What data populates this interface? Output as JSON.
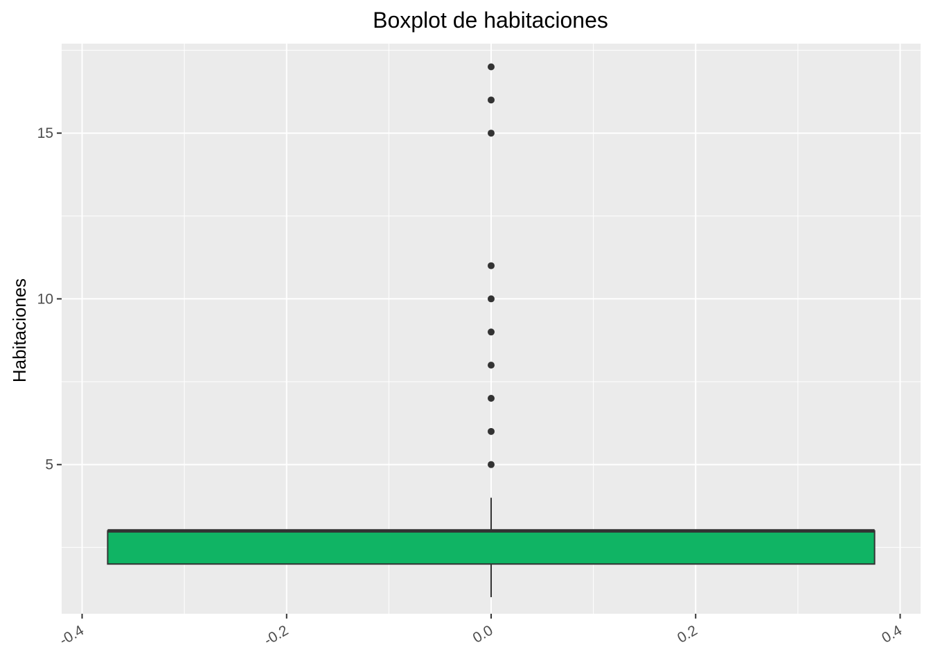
{
  "chart_data": {
    "type": "boxplot",
    "title": "Boxplot de habitaciones",
    "xlabel": "",
    "ylabel": "Habitaciones",
    "xlim": [
      -0.42,
      0.42
    ],
    "ylim": [
      0.5,
      17.7
    ],
    "x_ticks": [
      -0.4,
      -0.2,
      0.0,
      0.2,
      0.4
    ],
    "x_tick_labels": [
      "-0.4",
      "-0.2",
      "0.0",
      "0.2",
      "0.4"
    ],
    "y_ticks": [
      5,
      10,
      15
    ],
    "y_tick_labels": [
      "5",
      "10",
      "15"
    ],
    "grid": true,
    "box": {
      "x_left": -0.375,
      "x_right": 0.375,
      "q1": 2,
      "median": 3,
      "q3": 3,
      "whisker_low": 1,
      "whisker_high": 4,
      "fill": "#10b464"
    },
    "outliers": [
      5,
      6,
      7,
      8,
      9,
      10,
      11,
      15,
      16,
      17
    ],
    "colors": {
      "panel_background": "#ebebeb",
      "grid": "#ffffff",
      "box_stroke": "#333333",
      "outlier": "#333333"
    }
  }
}
